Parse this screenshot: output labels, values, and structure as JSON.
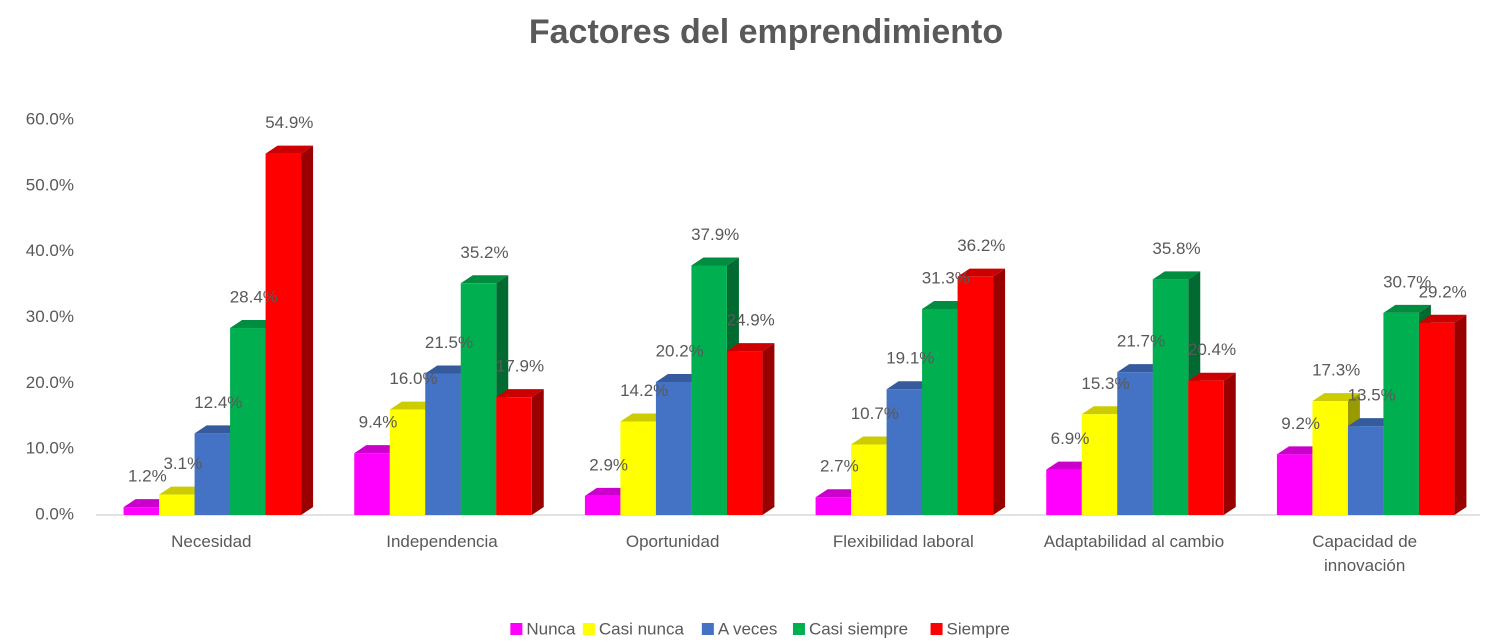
{
  "chart_data": {
    "type": "bar3d",
    "title": "Factores del emprendimiento",
    "categories": [
      "Necesidad",
      "Independencia",
      "Oportunidad",
      "Flexibilidad laboral",
      "Adaptabilidad al cambio",
      "Capacidad de innovación"
    ],
    "series": [
      {
        "name": "Nunca",
        "color": "#ff00ff",
        "values": [
          1.2,
          9.4,
          2.9,
          2.7,
          6.9,
          9.2
        ],
        "value_labels": [
          "1.2%",
          "9.4%",
          "2.9%",
          "2.7%",
          "6.9%",
          "9.2%"
        ]
      },
      {
        "name": "Casi nunca",
        "color": "#ffff00",
        "values": [
          3.1,
          16.0,
          14.2,
          10.7,
          15.3,
          17.3
        ],
        "value_labels": [
          "3.1%",
          "16.0%",
          "14.2%",
          "10.7%",
          "15.3%",
          "17.3%"
        ]
      },
      {
        "name": "A veces",
        "color": "#4472c4",
        "values": [
          12.4,
          21.5,
          20.2,
          19.1,
          21.7,
          13.5
        ],
        "value_labels": [
          "12.4%",
          "21.5%",
          "20.2%",
          "19.1%",
          "21.7%",
          "13.5%"
        ]
      },
      {
        "name": "Casi siempre",
        "color": "#00b050",
        "values": [
          28.4,
          35.2,
          37.9,
          31.3,
          35.8,
          30.7
        ],
        "value_labels": [
          "28.4%",
          "35.2%",
          "37.9%",
          "31.3%",
          "35.8%",
          "30.7%"
        ]
      },
      {
        "name": "Siempre",
        "color": "#ff0000",
        "values": [
          54.9,
          17.9,
          24.9,
          36.2,
          20.4,
          29.2
        ],
        "value_labels": [
          "54.9%",
          "17.9%",
          "24.9%",
          "36.2%",
          "20.4%",
          "29.2%"
        ]
      }
    ],
    "ylim": [
      0,
      60
    ],
    "yticks": [
      {
        "value": 0,
        "label": "0.0%"
      },
      {
        "value": 10,
        "label": "10.0%"
      },
      {
        "value": 20,
        "label": "20.0%"
      },
      {
        "value": 30,
        "label": "30.0%"
      },
      {
        "value": 40,
        "label": "40.0%"
      },
      {
        "value": 50,
        "label": "50.0%"
      },
      {
        "value": 60,
        "label": "60.0%"
      }
    ],
    "grid": false,
    "legend": "bottom"
  }
}
